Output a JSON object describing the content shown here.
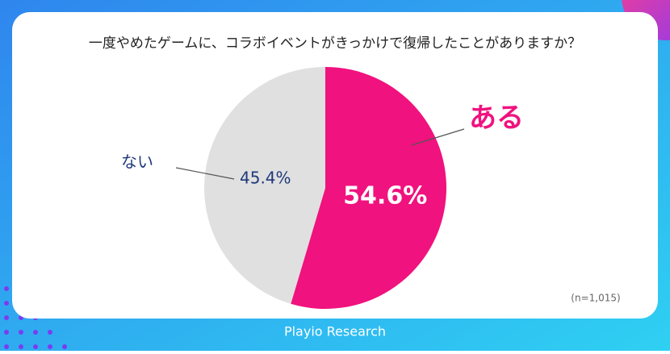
{
  "chart_data": {
    "type": "pie",
    "title": "一度やめたゲームに、コラボイベントがきっかけで復帰したことがありますか？",
    "categories": [
      "ある",
      "ない"
    ],
    "values": [
      54.6,
      45.4
    ],
    "value_labels": [
      "54.6%",
      "45.4%"
    ],
    "colors": [
      "#f0127e",
      "#e0e0e0"
    ],
    "label_colors": [
      "#f0127e",
      "#1f3a7a"
    ],
    "value_label_colors": [
      "#ffffff",
      "#1f3a7a"
    ],
    "note": "(n=1,015)",
    "source": "Playio Research"
  }
}
